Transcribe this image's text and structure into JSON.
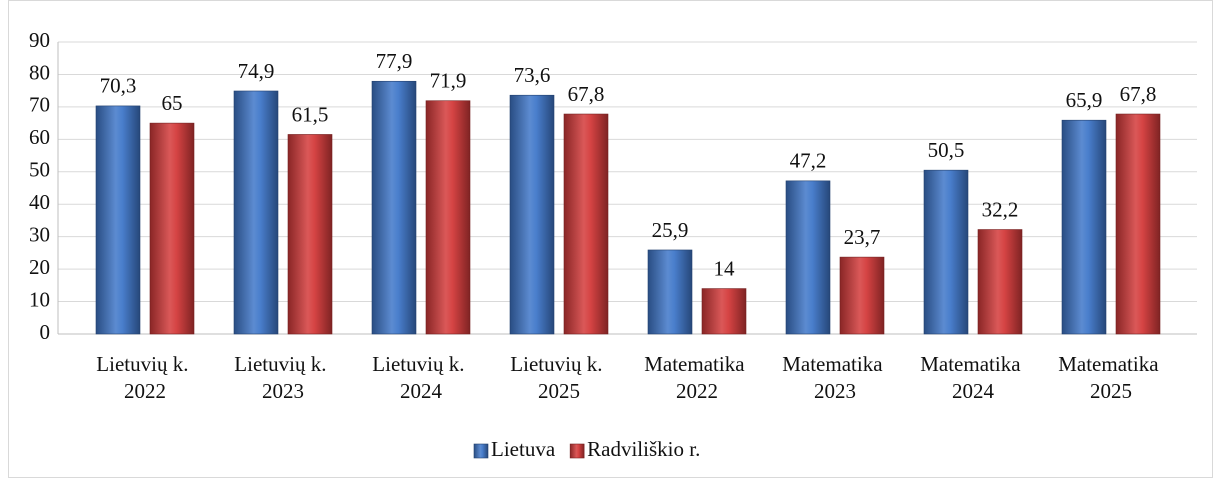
{
  "chart_data": {
    "type": "bar",
    "categories": [
      "Lietuvių k. 2022",
      "Lietuvių k. 2023",
      "Lietuvių k. 2024",
      "Lietuvių k. 2025",
      "Matematika 2022",
      "Matematika 2023",
      "Matematika 2024",
      "Matematika 2025"
    ],
    "series": [
      {
        "name": "Lietuva",
        "color": "#3f77c9",
        "values": [
          70.3,
          74.9,
          77.9,
          73.6,
          25.9,
          47.2,
          50.5,
          65.9
        ],
        "value_labels": [
          "70,3",
          "74,9",
          "77,9",
          "73,6",
          "25,9",
          "47,2",
          "50,5",
          "65,9"
        ]
      },
      {
        "name": "Radviliškio r.",
        "color": "#d43a3a",
        "values": [
          65,
          61.5,
          71.9,
          67.8,
          14,
          23.7,
          32.2,
          67.8
        ],
        "value_labels": [
          "65",
          "61,5",
          "71,9",
          "67,8",
          "14",
          "23,7",
          "32,2",
          "67,8"
        ]
      }
    ],
    "ylim": [
      0,
      90
    ],
    "yticks": [
      0,
      10,
      20,
      30,
      40,
      50,
      60,
      70,
      80,
      90
    ],
    "grid": true,
    "legend": "bottom"
  }
}
